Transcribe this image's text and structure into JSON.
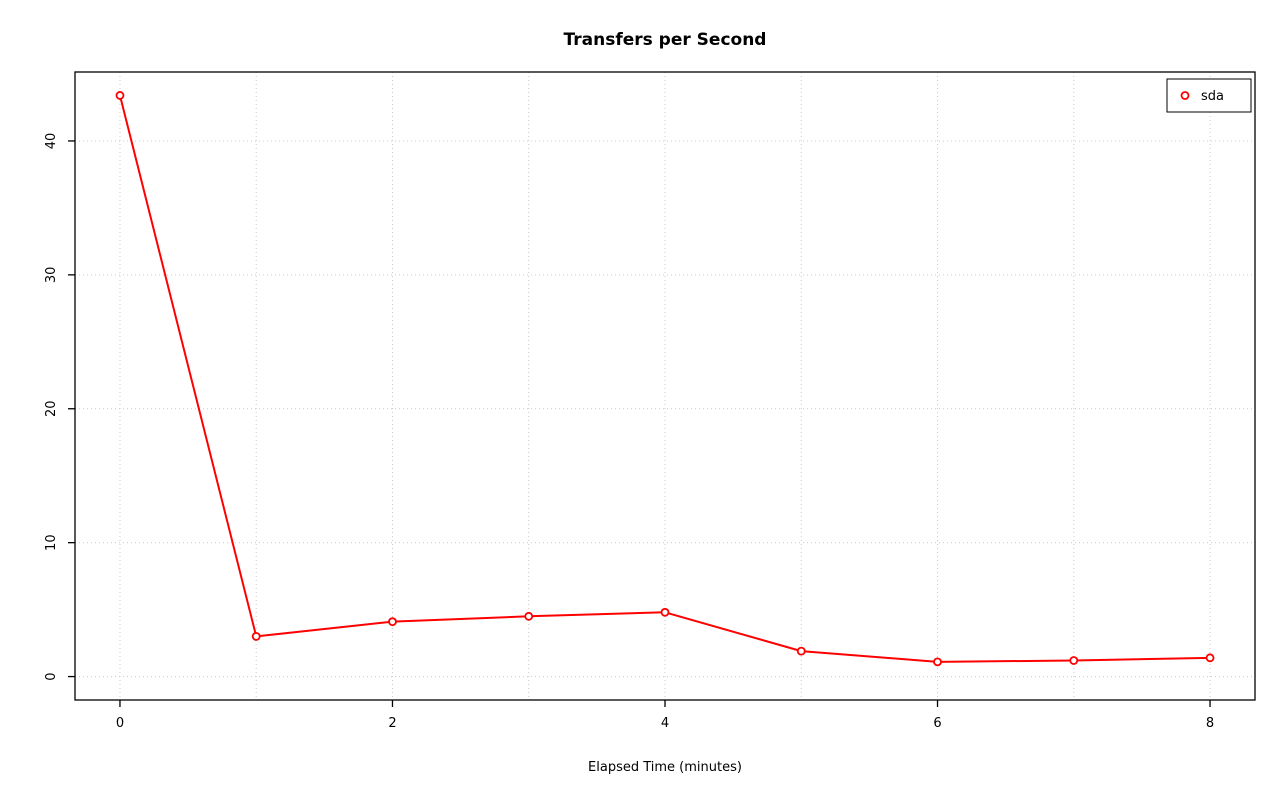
{
  "labels": {
    "title": "Transfers per Second",
    "xlabel": "Elapsed Time (minutes)"
  },
  "chart_data": {
    "type": "line",
    "title": "Transfers per Second",
    "xlabel": "Elapsed Time (minutes)",
    "ylabel": "",
    "x": [
      0,
      1,
      2,
      3,
      4,
      5,
      6,
      7,
      8
    ],
    "series": [
      {
        "name": "sda",
        "color": "#ff0000",
        "marker": "open-circle",
        "values": [
          43.4,
          3.0,
          4.1,
          4.5,
          4.8,
          1.9,
          1.1,
          1.2,
          1.4
        ]
      }
    ],
    "x_ticks": [
      0,
      2,
      4,
      6,
      8
    ],
    "y_ticks": [
      0,
      10,
      20,
      30,
      40
    ],
    "xlim": [
      -0.33,
      8.33
    ],
    "ylim": [
      -1.75,
      45.15
    ],
    "grid": true,
    "grid_x_every": 1,
    "grid_style": "dotted",
    "legend_position": "top-right",
    "legend": [
      "sda"
    ],
    "colors": {
      "series": "#ff0000",
      "grid": "#c9c9c9",
      "axis": "#000000",
      "background": "#ffffff"
    }
  }
}
